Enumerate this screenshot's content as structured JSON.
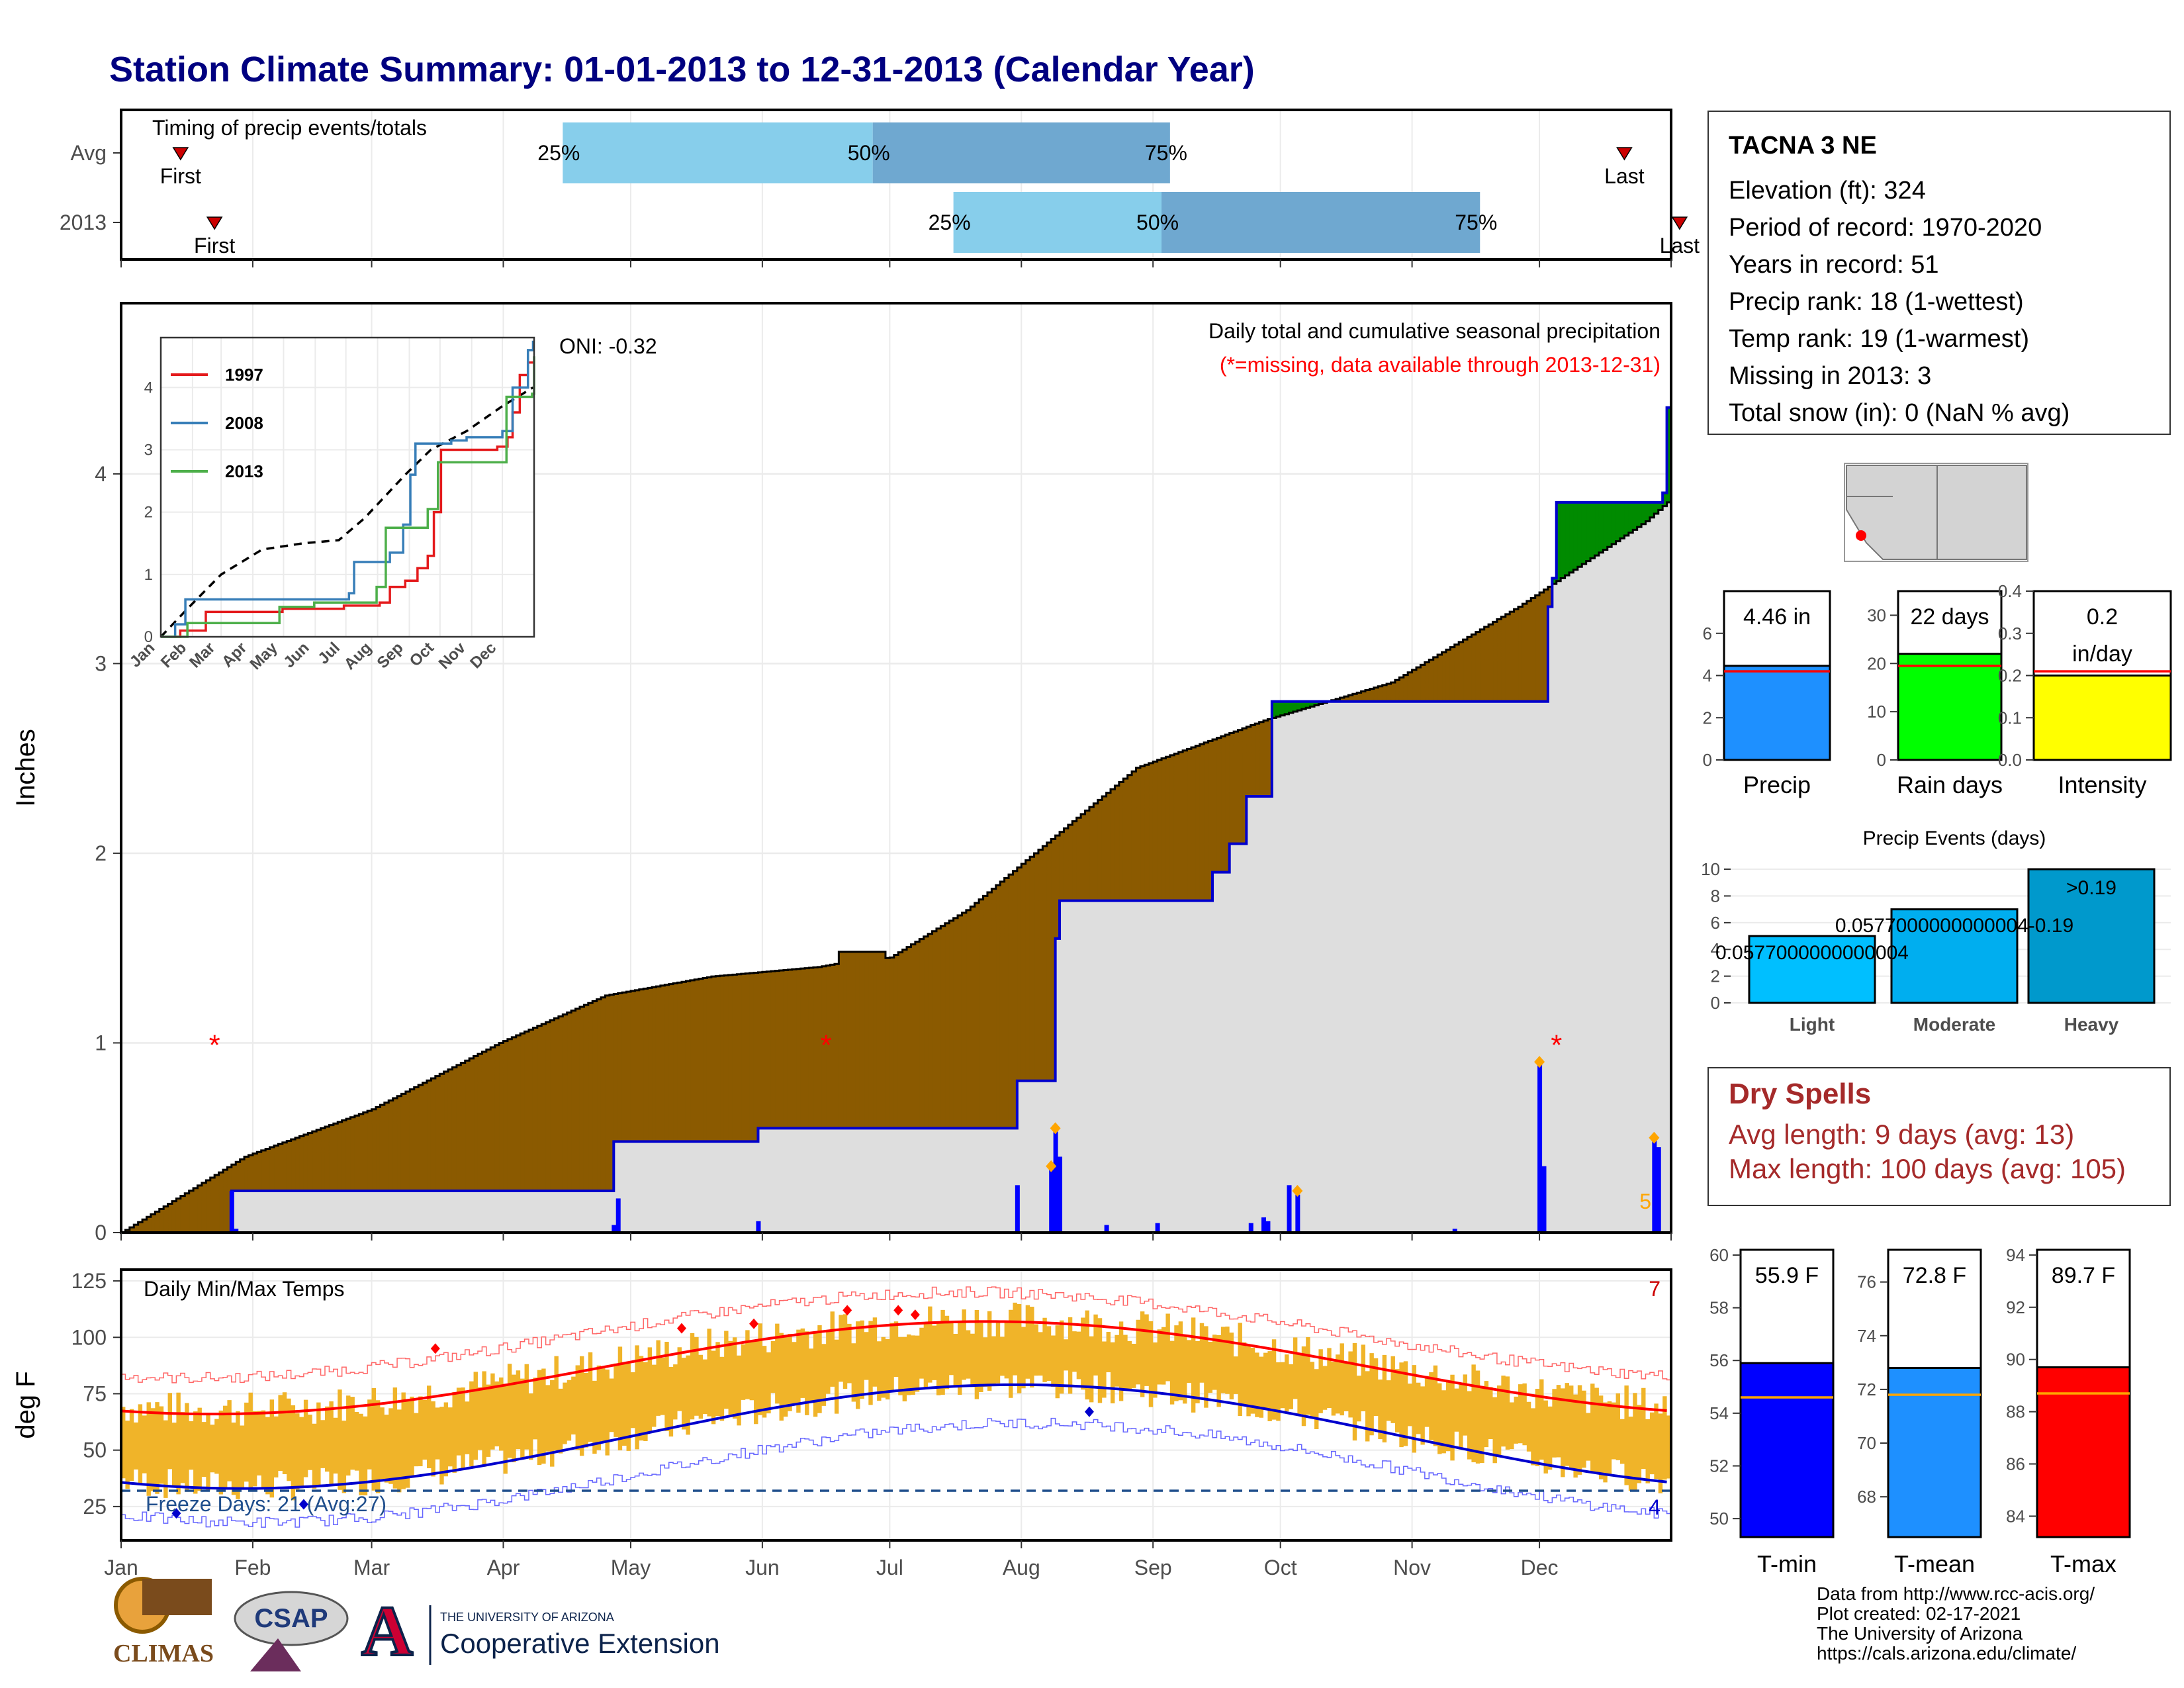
{
  "page": {
    "title": "Station Climate Summary: 01-01-2013 to 12-31-2013 (Calendar Year)"
  },
  "months": [
    "Jan",
    "Feb",
    "Mar",
    "Apr",
    "May",
    "Jun",
    "Jul",
    "Aug",
    "Sep",
    "Oct",
    "Nov",
    "Dec"
  ],
  "timing": {
    "label": "Timing of precip events/totals",
    "rows": [
      {
        "name": "Avg",
        "first_label": "First",
        "last_label": "Last",
        "first_doy": 15,
        "last_doy": 355,
        "p25_doy": 105,
        "p50_doy": 178,
        "p75_doy": 248,
        "p25_label": "25%",
        "p50_label": "50%",
        "p75_label": "75%"
      },
      {
        "name": "2013",
        "first_label": "First",
        "last_label": "Last",
        "first_doy": 23,
        "last_doy": 368,
        "p25_doy": 197,
        "p50_doy": 246,
        "p75_doy": 321,
        "p25_label": "25%",
        "p50_label": "50%",
        "p75_label": "75%"
      }
    ]
  },
  "station": {
    "name": "TACNA 3 NE",
    "lines": [
      "Elevation (ft): 324",
      "Period of record: 1970-2020",
      "Years in record: 51",
      "Precip rank: 18 (1-wettest)",
      "Temp rank: 19 (1-warmest)",
      "Missing in 2013: 3",
      "Total snow (in): 0 (NaN % avg)"
    ]
  },
  "precip_panel": {
    "ylabel": "Inches",
    "oni": "ONI: -0.32",
    "title": "Daily total and cumulative seasonal precipitation",
    "subtitle": "(*=missing, data available through 2013-12-31)",
    "corner_count": "5",
    "yticks": [
      0,
      1,
      2,
      3,
      4
    ],
    "ylim": [
      0,
      4.9
    ],
    "missing_days": [
      23,
      167,
      339
    ]
  },
  "inset": {
    "series": [
      {
        "name": "1997",
        "color": "#e41a1c"
      },
      {
        "name": "2008",
        "color": "#377eb8"
      },
      {
        "name": "2013",
        "color": "#4daf4a"
      }
    ],
    "yticks": [
      0,
      1,
      2,
      3,
      4
    ],
    "ylim": [
      0,
      4.8
    ]
  },
  "bars": {
    "precip": {
      "value_label": "4.46 in",
      "value": 4.46,
      "avg": 4.2,
      "name": "Precip",
      "ticks": [
        0,
        2,
        4,
        6
      ],
      "ylim": [
        0,
        8
      ],
      "color": "#1e90ff"
    },
    "rain_days": {
      "value_label": "22 days",
      "value": 22,
      "avg": 19.5,
      "name": "Rain days",
      "ticks": [
        0,
        10,
        20,
        30
      ],
      "ylim": [
        0,
        35
      ],
      "color": "#00ff00"
    },
    "intensity": {
      "value_label": "0.2",
      "value_label2": "in/day",
      "value": 0.2,
      "avg": 0.21,
      "name": "Intensity",
      "ticks": [
        "0.0",
        "0.1",
        "0.2",
        "0.3",
        "0.4"
      ],
      "ylim": [
        0,
        0.4
      ],
      "color": "#ffff00"
    }
  },
  "events": {
    "title": "Precip Events (days)",
    "categories": [
      "Light",
      "Moderate",
      "Heavy"
    ],
    "values": [
      5,
      7,
      10
    ],
    "labels": [
      "0.0577000000000004",
      "0.0577000000000004-0.19",
      ">0.19"
    ],
    "ticks": [
      0,
      2,
      4,
      6,
      8,
      10
    ],
    "colors": [
      "#00bfff",
      "#00aeef",
      "#0099cc"
    ]
  },
  "dry_spells": {
    "title": "Dry Spells",
    "avg_line": "Avg length: 9 days (avg: 13)",
    "max_line": "Max length: 100 days (avg: 105)"
  },
  "temp_panel": {
    "ylabel": "deg F",
    "title": "Daily Min/Max Temps",
    "hot_count": "7",
    "cold_count": "4",
    "freeze_text": "Freeze Days: 21 (Avg:27)",
    "yticks": [
      25,
      50,
      75,
      100,
      125
    ],
    "ylim": [
      10,
      130
    ]
  },
  "temp_bars": [
    {
      "value_label": "55.9 F",
      "value": 55.9,
      "avg": 54.6,
      "name": "T-min",
      "ticks": [
        50,
        52,
        54,
        56,
        58,
        60
      ],
      "ylim": [
        49.3,
        60.2
      ],
      "color": "#0000ff"
    },
    {
      "value_label": "72.8 F",
      "value": 72.8,
      "avg": 71.8,
      "name": "T-mean",
      "ticks": [
        68,
        70,
        72,
        74,
        76
      ],
      "ylim": [
        66.5,
        77.2
      ],
      "color": "#1e90ff"
    },
    {
      "value_label": "89.7 F",
      "value": 89.7,
      "avg": 88.7,
      "name": "T-max",
      "ticks": [
        84,
        86,
        88,
        90,
        92,
        94
      ],
      "ylim": [
        83.2,
        94.2
      ],
      "color": "#ff0000"
    }
  ],
  "credits": [
    "Data from http://www.rcc-acis.org/",
    "Plot created: 02-17-2021",
    "The University of Arizona",
    "https://cals.arizona.edu/climate/"
  ],
  "logos": {
    "climas": "CLIMAS",
    "csap": "CSAP",
    "ua_small": "THE UNIVERSITY OF ARIZONA",
    "ua_big": "Cooperative Extension"
  }
}
